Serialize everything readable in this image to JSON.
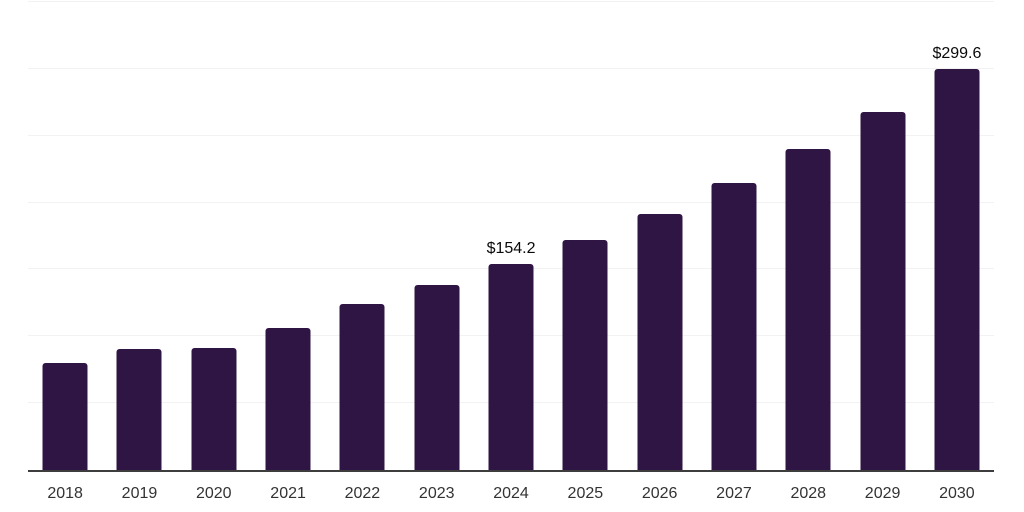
{
  "chart_data": {
    "type": "bar",
    "title": "",
    "xlabel": "",
    "ylabel": "",
    "categories": [
      "2018",
      "2019",
      "2020",
      "2021",
      "2022",
      "2023",
      "2024",
      "2025",
      "2026",
      "2027",
      "2028",
      "2029",
      "2030"
    ],
    "values": [
      80.4,
      90.5,
      91.5,
      106.2,
      124.0,
      138.2,
      154.2,
      172.1,
      191.5,
      214.6,
      240.0,
      267.5,
      299.6
    ],
    "annotations": [
      {
        "category": "2024",
        "text": "$154.2"
      },
      {
        "category": "2030",
        "text": "$299.6"
      }
    ],
    "ylim": [
      0,
      350
    ],
    "gridline_interval": 50,
    "grid": true,
    "legend_position": "none",
    "colors": {
      "bar": "#2f1543",
      "gridline": "#f2f2f2",
      "axis_line": "#3d3d3d",
      "annotation_text": "#0a0a0a",
      "tick_text": "#333333",
      "background": "#ffffff"
    }
  }
}
